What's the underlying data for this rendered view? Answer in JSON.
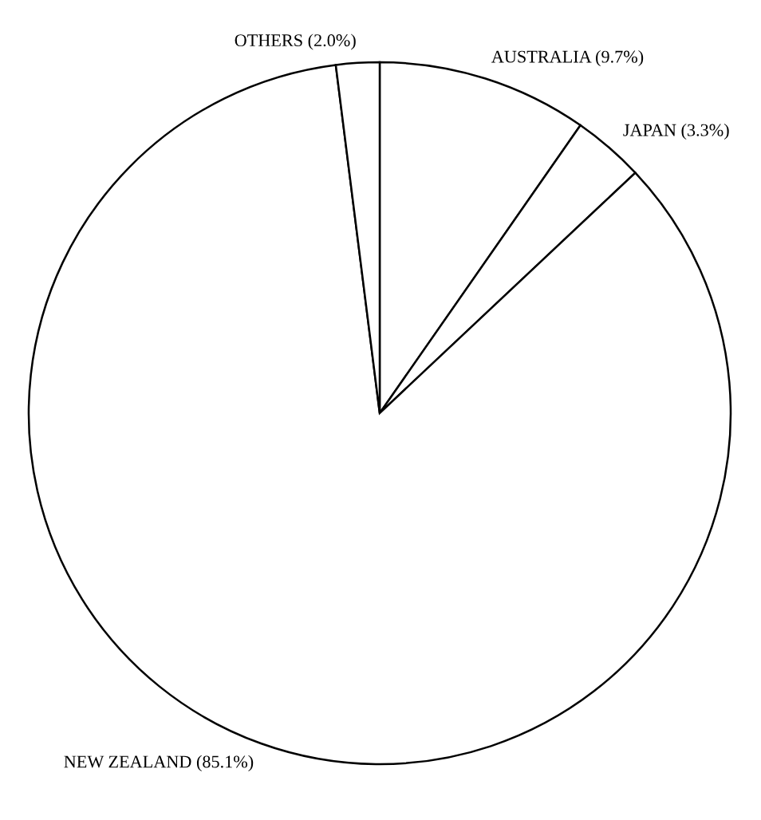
{
  "chart_data": {
    "type": "pie",
    "categories": [
      "AUSTRALIA (9.7%)",
      "JAPAN (3.3%)",
      "NEW ZEALAND (85.1%)",
      "OTHERS (2.0%)"
    ],
    "values": [
      9.7,
      3.3,
      85.1,
      2.0
    ],
    "colors": [
      "#ffffff",
      "#ffffff",
      "#ffffff",
      "#ffffff"
    ]
  }
}
